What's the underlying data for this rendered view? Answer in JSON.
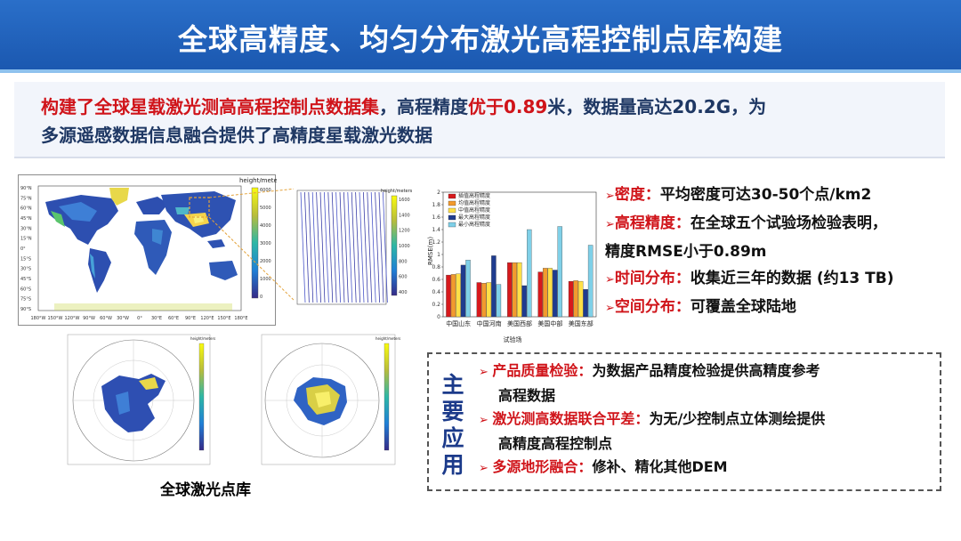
{
  "title": "全球高精度、均匀分布激光高程控制点库构建",
  "summary": {
    "line1_red": "构建了全球星载激光测高高程控制点数据集",
    "line1_mid": "，高程精度",
    "line1_red2": "优于0.89",
    "line1_end": "米，数据量高达20.2G，为",
    "line2": "多源遥感数据信息融合提供了高精度星载激光数据"
  },
  "maps": {
    "colorbar_title": "height/meters",
    "world_lat_ticks": [
      "90°N",
      "75°N",
      "60°N",
      "45°N",
      "30°N",
      "15°N",
      "0°",
      "15°S",
      "30°S",
      "45°S",
      "60°S",
      "75°S",
      "90°S"
    ],
    "world_lon_ticks": [
      "180°W",
      "150°W",
      "120°W",
      "90°W",
      "60°W",
      "30°W",
      "0°",
      "30°E",
      "60°E",
      "90°E",
      "120°E",
      "150°E",
      "180°E"
    ],
    "world_cb_ticks": [
      "6000",
      "5000",
      "4000",
      "3000",
      "2000",
      "1000",
      "0"
    ],
    "zoom_cb_ticks": [
      "1600",
      "1400",
      "1200",
      "1000",
      "800",
      "600",
      "400"
    ],
    "caption": "全球激光点库"
  },
  "chart_data": {
    "type": "bar",
    "categories": [
      "中国山东",
      "中国河南",
      "美国西部",
      "美国中部",
      "美国东部"
    ],
    "xlabel": "试验场",
    "ylabel": "RMSE(m)",
    "ylim": [
      0,
      2
    ],
    "yticks": [
      "0",
      "0.2",
      "0.4",
      "0.6",
      "0.8",
      "1",
      "1.2",
      "1.4",
      "1.6",
      "1.8",
      "2"
    ],
    "legend_position": "top-left",
    "series": [
      {
        "name": "插值高程精度",
        "color": "#d7191c",
        "values": [
          0.67,
          0.55,
          0.87,
          0.72,
          0.57
        ]
      },
      {
        "name": "均值高程精度",
        "color": "#f29a2e",
        "values": [
          0.68,
          0.54,
          0.87,
          0.78,
          0.58
        ]
      },
      {
        "name": "中值高程精度",
        "color": "#ffe047",
        "values": [
          0.69,
          0.55,
          0.87,
          0.78,
          0.57
        ]
      },
      {
        "name": "最大高程精度",
        "color": "#1f3c8f",
        "values": [
          0.83,
          0.98,
          0.5,
          0.75,
          0.44
        ]
      },
      {
        "name": "最小高程精度",
        "color": "#7fd0e8",
        "values": [
          0.91,
          0.52,
          1.4,
          1.45,
          1.15
        ]
      }
    ]
  },
  "bullets": [
    {
      "key": "密度：",
      "text": "平均密度可达30-50个点/km2"
    },
    {
      "key": "高程精度：",
      "text": "在全球五个试验场检验表明，"
    },
    {
      "key": "",
      "text": "精度RMSE小于0.89m"
    },
    {
      "key": "时间分布：",
      "text": "收集近三年的数据 (约13 TB)"
    },
    {
      "key": "空间分布：",
      "text": "可覆盖全球陆地"
    }
  ],
  "applications": {
    "label": "主要应用",
    "items": [
      {
        "key": "产品质量检验：",
        "text": "为数据产品精度检验提供高精度参考",
        "cont": "高程数据"
      },
      {
        "key": "激光测高数据联合平差：",
        "text": "为无/少控制点立体测绘提供",
        "cont": "高精度高程控制点"
      },
      {
        "key": "多源地形融合：",
        "text": "修补、精化其他DEM",
        "cont": ""
      }
    ]
  },
  "colors": {
    "title_bg": "#1b58b0",
    "accent_red": "#d0141a",
    "text_navy": "#1f3864"
  }
}
